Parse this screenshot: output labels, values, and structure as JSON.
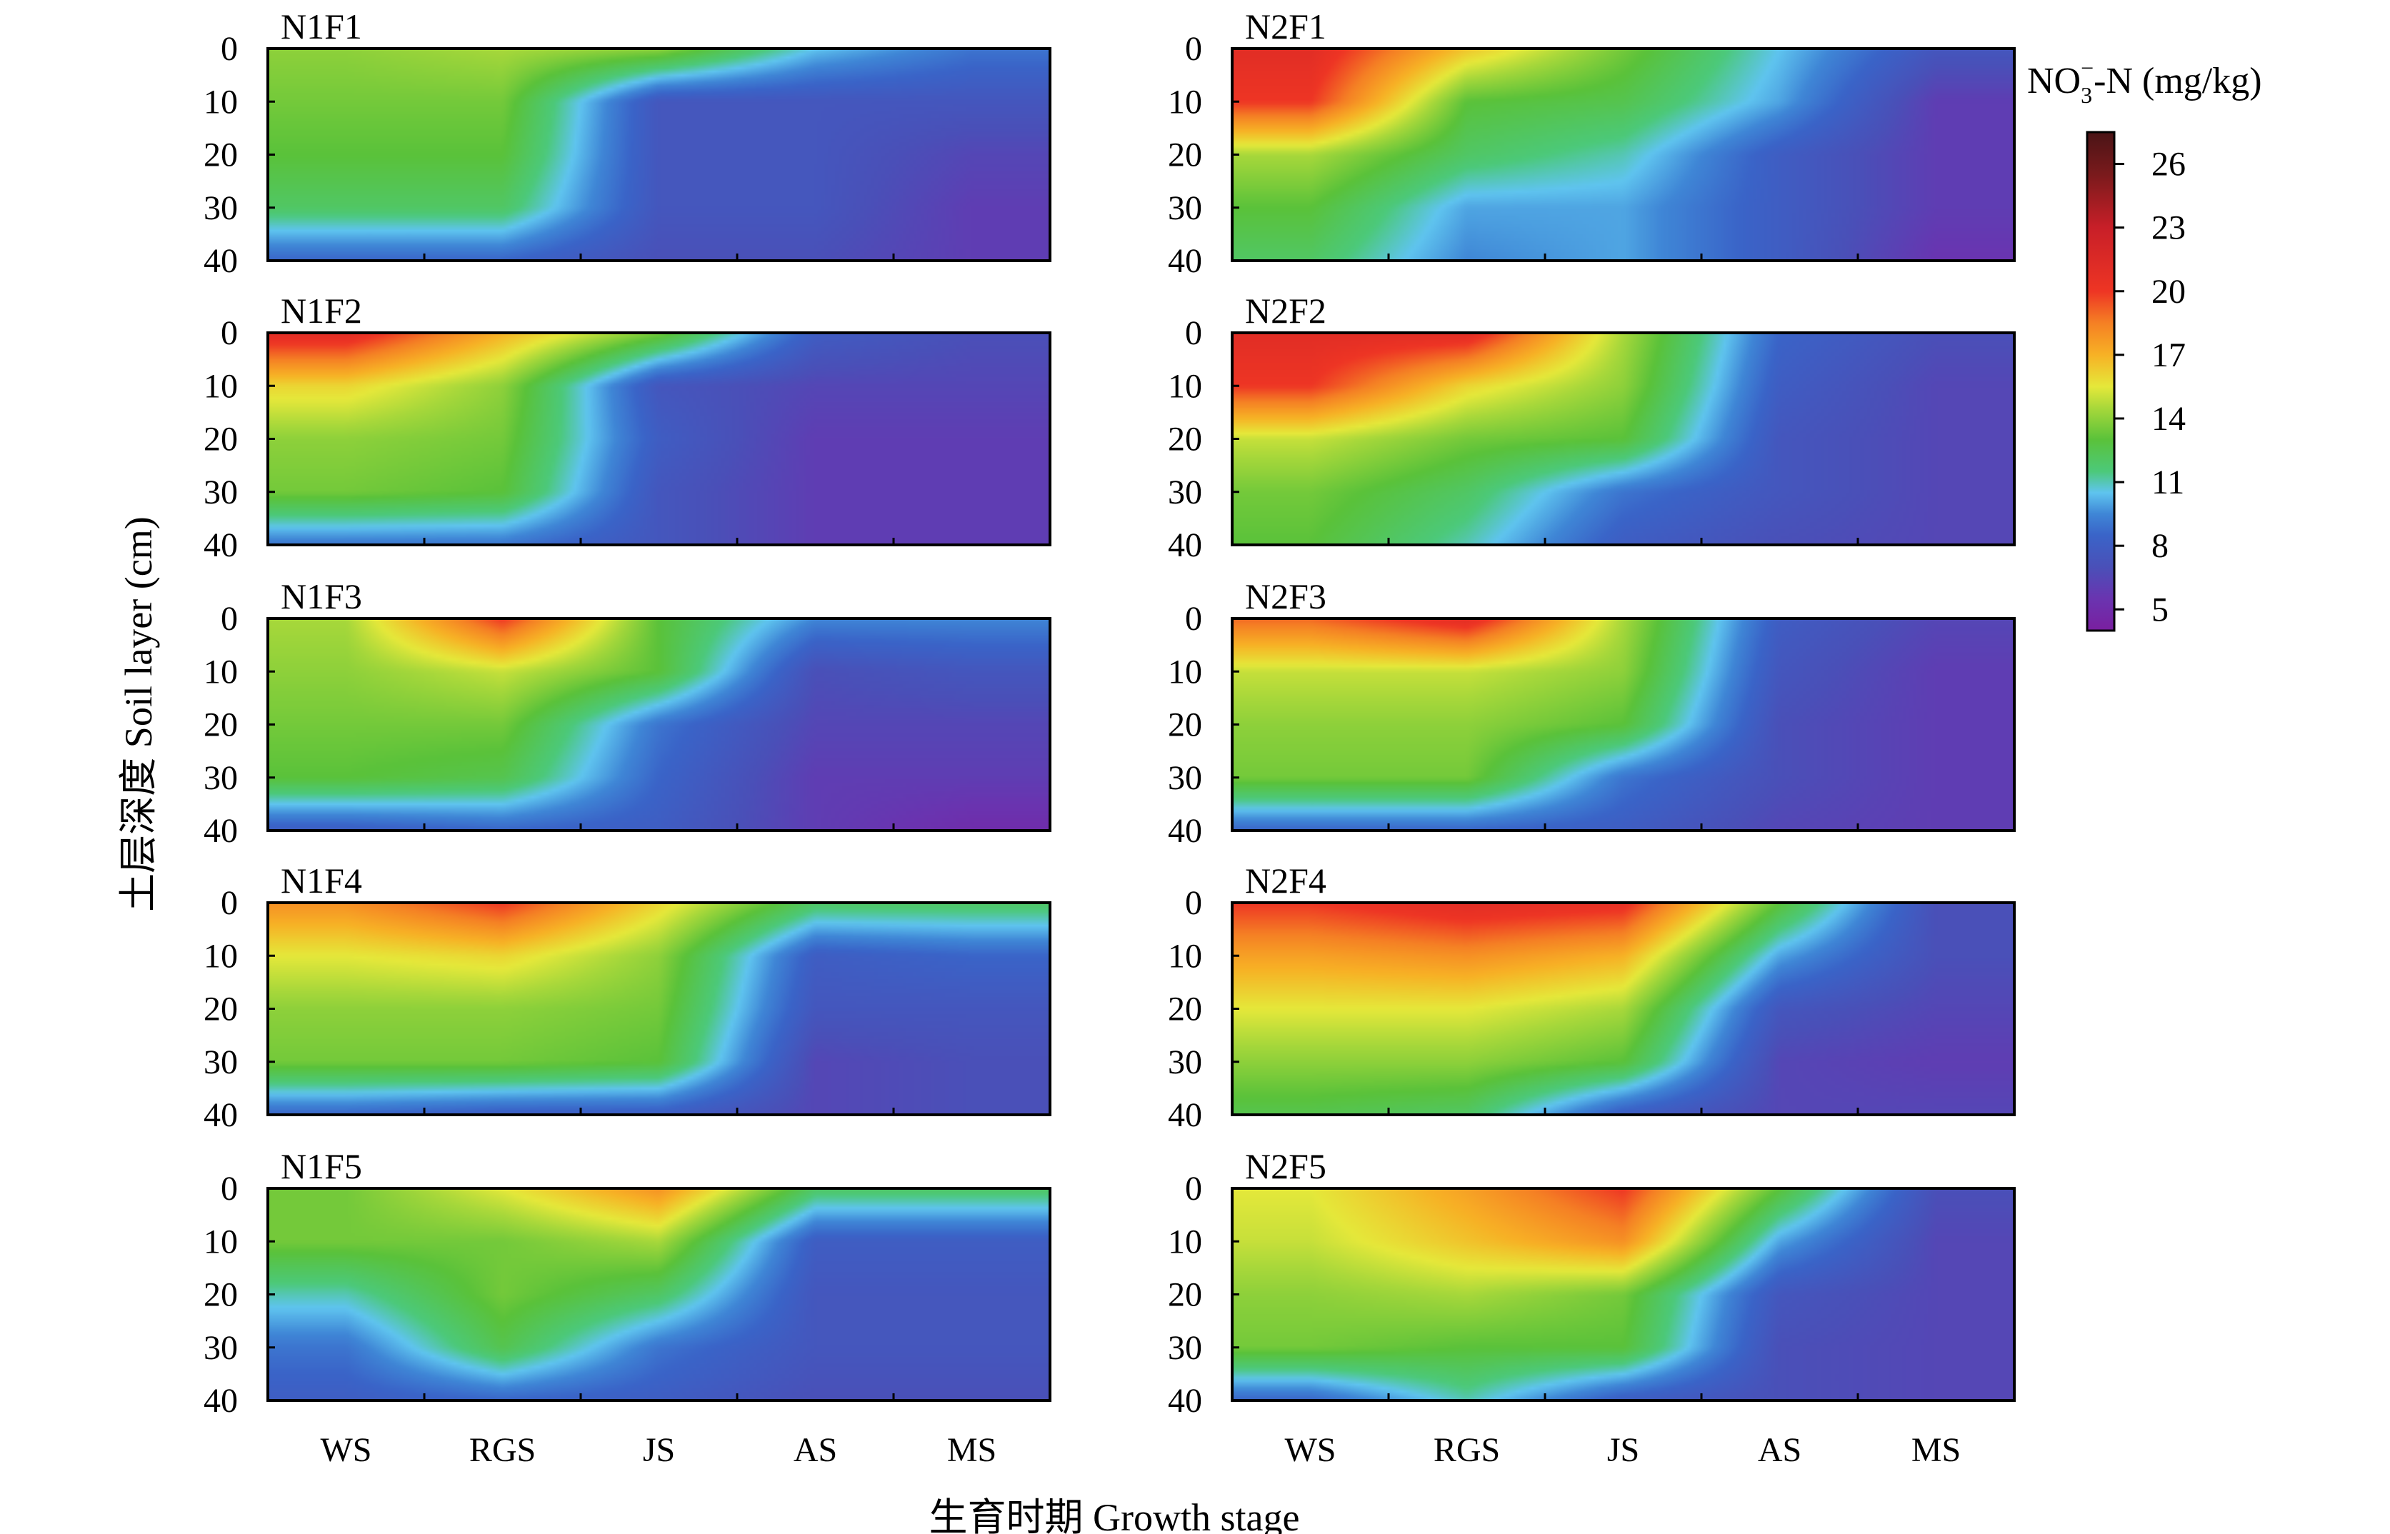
{
  "chart_data": {
    "type": "heatmap",
    "title": "",
    "xlabel": "生育时期 Growth stage",
    "ylabel": "土层深度 Soil layer (cm)",
    "x_categories": [
      "WS",
      "RGS",
      "JS",
      "AS",
      "MS"
    ],
    "depths": [
      0,
      10,
      20,
      30,
      40
    ],
    "ylim": [
      0,
      40
    ],
    "y_ticks": [
      "0",
      "10",
      "20",
      "30",
      "40"
    ],
    "colorbar": {
      "title_main": "NO",
      "title_sub": "3",
      "title_sup": "−",
      "title_rest": "-N (mg/kg)",
      "min": 4,
      "max": 27.5,
      "ticks": [
        "5",
        "8",
        "11",
        "14",
        "17",
        "20",
        "23",
        "26"
      ],
      "stops": [
        [
          4,
          "#7a1fa0"
        ],
        [
          5.5,
          "#6a34b0"
        ],
        [
          7,
          "#4a50b8"
        ],
        [
          8.5,
          "#3a64c8"
        ],
        [
          9.5,
          "#3f86d6"
        ],
        [
          10.5,
          "#5fc4ef"
        ],
        [
          11.5,
          "#4cc97a"
        ],
        [
          13,
          "#5ac23a"
        ],
        [
          14.5,
          "#a8d83a"
        ],
        [
          15.5,
          "#e5e83a"
        ],
        [
          17,
          "#f7b125"
        ],
        [
          18.5,
          "#f58024"
        ],
        [
          20,
          "#ee3524"
        ],
        [
          23,
          "#c81f28"
        ],
        [
          25.5,
          "#7a1a1c"
        ],
        [
          27.5,
          "#4a1416"
        ]
      ]
    },
    "panels": [
      {
        "name": "N1F1",
        "values": [
          [
            14,
            14.5,
            14,
            10.5,
            9
          ],
          [
            13.5,
            13.5,
            7.5,
            7.5,
            7.5
          ],
          [
            13,
            13,
            7.5,
            7.5,
            6.5
          ],
          [
            12,
            12,
            7.5,
            7.5,
            6
          ],
          [
            8.5,
            8.5,
            7,
            7,
            6
          ]
        ]
      },
      {
        "name": "N2F1",
        "values": [
          [
            21,
            16.5,
            13.5,
            10.5,
            7.5
          ],
          [
            20,
            13,
            12.5,
            10,
            6
          ],
          [
            14.5,
            12,
            11,
            8,
            6
          ],
          [
            13,
            10,
            10,
            8,
            6
          ],
          [
            12,
            9.5,
            10,
            8,
            5.5
          ]
        ]
      },
      {
        "name": "N1F2",
        "values": [
          [
            21,
            17,
            13.5,
            8,
            7
          ],
          [
            16,
            14,
            7.5,
            6.5,
            6.5
          ],
          [
            14,
            13.5,
            8,
            6,
            6
          ],
          [
            13.5,
            13,
            7.5,
            6,
            6
          ],
          [
            9,
            9,
            7.5,
            6,
            6
          ]
        ]
      },
      {
        "name": "N2F2",
        "values": [
          [
            21,
            21,
            14.5,
            8.5,
            7
          ],
          [
            20,
            16,
            14,
            8,
            6.5
          ],
          [
            15,
            13.5,
            13,
            7.5,
            6.5
          ],
          [
            13.5,
            12,
            9,
            7.5,
            6.5
          ],
          [
            13,
            11,
            8,
            7,
            6.5
          ]
        ]
      },
      {
        "name": "N1F3",
        "values": [
          [
            14.5,
            20,
            13,
            9.5,
            9.5
          ],
          [
            14,
            15,
            13,
            7,
            7.5
          ],
          [
            13.5,
            13.5,
            9,
            6.5,
            6.5
          ],
          [
            13,
            12.5,
            8.5,
            6,
            6
          ],
          [
            8,
            8.5,
            8,
            6,
            5
          ]
        ]
      },
      {
        "name": "N2F3",
        "values": [
          [
            19,
            21,
            14.5,
            8,
            6.5
          ],
          [
            15,
            15,
            14,
            7.5,
            6
          ],
          [
            14,
            14,
            13,
            7,
            6
          ],
          [
            13.5,
            13.5,
            9,
            7,
            6
          ],
          [
            8.5,
            8.5,
            8,
            6.5,
            6
          ]
        ]
      },
      {
        "name": "N1F4",
        "values": [
          [
            18,
            20,
            16,
            12,
            12
          ],
          [
            15.5,
            16,
            14,
            8,
            8.5
          ],
          [
            14,
            14,
            13.5,
            7.5,
            7.5
          ],
          [
            13.5,
            13.5,
            13,
            6.5,
            7
          ],
          [
            8.5,
            8,
            8,
            6.5,
            7
          ]
        ]
      },
      {
        "name": "N2F4",
        "values": [
          [
            20,
            21,
            20.5,
            13,
            7
          ],
          [
            17.5,
            18,
            17,
            10,
            7
          ],
          [
            15.5,
            15.5,
            14.5,
            7.5,
            6.5
          ],
          [
            14,
            14,
            13,
            6.5,
            6
          ],
          [
            12.5,
            12,
            8,
            6.5,
            6.5
          ]
        ]
      },
      {
        "name": "N1F5",
        "values": [
          [
            13.5,
            15.5,
            18,
            12,
            12
          ],
          [
            13.5,
            13.5,
            14.5,
            8,
            8
          ],
          [
            11,
            13.5,
            12,
            7.5,
            7.5
          ],
          [
            9,
            12.5,
            9,
            7.5,
            7.5
          ],
          [
            8,
            8.5,
            8,
            7,
            7
          ]
        ]
      },
      {
        "name": "N2F5",
        "values": [
          [
            15.5,
            17.5,
            20,
            13,
            7
          ],
          [
            15,
            16.5,
            18,
            10,
            6.5
          ],
          [
            14,
            14.5,
            13.5,
            7.5,
            6.5
          ],
          [
            13.5,
            13,
            13,
            7,
            6.5
          ],
          [
            8.5,
            11,
            8,
            7,
            6.5
          ]
        ]
      }
    ]
  }
}
